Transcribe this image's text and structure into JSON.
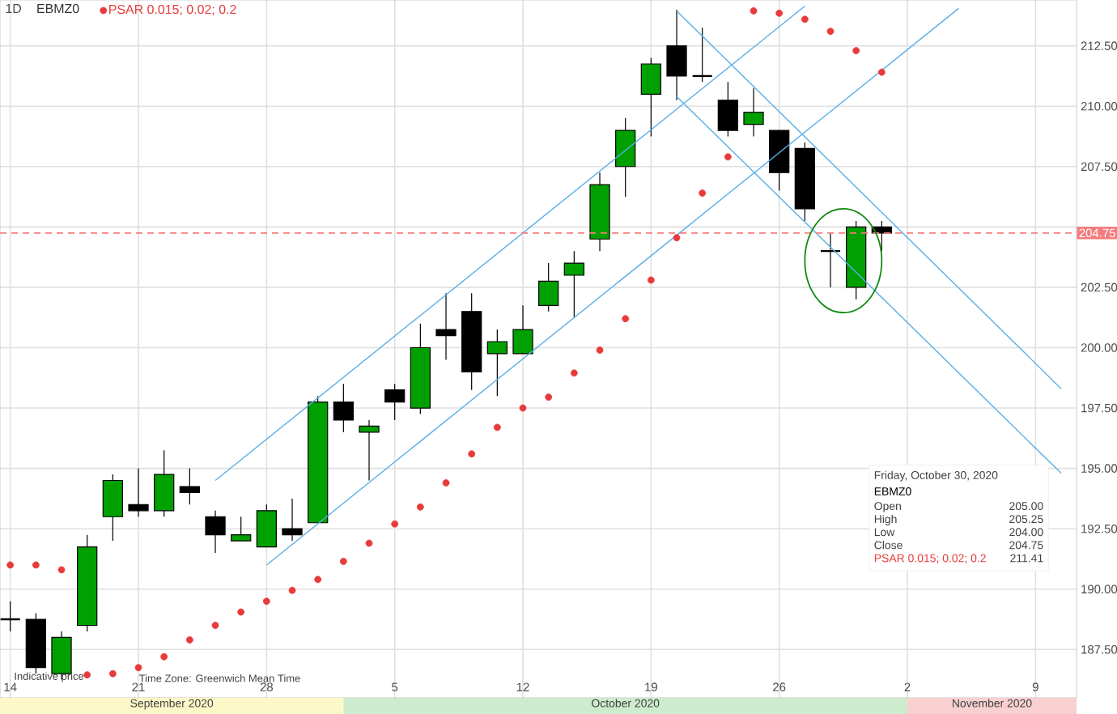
{
  "chart_data": {
    "type": "candlestick",
    "title": "EBMZ0",
    "subtitle": "1D",
    "annotations": [
      "Indicative price",
      "Time Zone: Greenwich Mean Time",
      "Friday, October 30, 2020",
      "EBMZ0",
      "Open",
      "205.00",
      "High",
      "205.25",
      "Low",
      "204.00",
      "Close",
      "204.75",
      "PSAR 0.015; 0.02; 0.2",
      "211.41",
      "September 2020",
      "October 2020",
      "November 2020"
    ],
    "categories": [
      "14",
      null,
      null,
      null,
      null,
      "21",
      null,
      null,
      null,
      null,
      "28",
      null,
      null,
      null,
      null,
      "5",
      null,
      null,
      null,
      null,
      "12",
      null,
      null,
      null,
      null,
      "19",
      null,
      null,
      null,
      null,
      "26",
      null,
      null,
      null,
      null,
      "2",
      null,
      null,
      null,
      null,
      "9",
      null
    ],
    "series": [
      {
        "ohlc": [
          [
            188.75,
            189.5,
            188.25,
            188.75
          ],
          [
            188.75,
            189.0,
            186.5,
            186.75
          ],
          [
            186.5,
            188.25,
            186.25,
            188.0
          ],
          [
            188.5,
            192.25,
            188.25,
            191.75
          ],
          [
            193.0,
            194.75,
            192.0,
            194.5
          ],
          [
            193.5,
            195.0,
            193.0,
            193.25
          ],
          [
            193.25,
            195.75,
            193.0,
            194.75
          ],
          [
            194.25,
            195.0,
            193.5,
            194.0
          ],
          [
            193.0,
            193.25,
            191.5,
            192.25
          ],
          [
            192.0,
            193.0,
            192.0,
            192.25
          ],
          [
            191.75,
            193.5,
            191.75,
            193.25
          ],
          [
            192.5,
            193.75,
            192.0,
            192.25
          ],
          [
            192.75,
            198.0,
            192.75,
            197.75
          ],
          [
            197.75,
            198.5,
            196.5,
            197.0
          ],
          [
            196.5,
            197.0,
            194.5,
            196.75
          ],
          [
            198.25,
            198.5,
            197.0,
            197.75
          ],
          [
            197.5,
            201.0,
            197.25,
            200.0
          ],
          [
            200.75,
            202.25,
            199.5,
            200.5
          ],
          [
            201.5,
            202.25,
            198.25,
            199.0
          ],
          [
            199.75,
            200.75,
            198.0,
            200.25
          ],
          [
            199.75,
            201.75,
            199.75,
            200.75
          ],
          [
            201.75,
            203.5,
            201.5,
            202.75
          ],
          [
            203.0,
            204.0,
            201.25,
            203.5
          ],
          [
            204.5,
            207.25,
            204.0,
            206.75
          ],
          [
            207.5,
            209.5,
            206.25,
            209.0
          ],
          [
            210.5,
            212.0,
            208.75,
            211.75
          ],
          [
            212.5,
            214.0,
            210.25,
            211.25
          ],
          [
            211.25,
            213.25,
            211.0,
            211.25
          ],
          [
            210.25,
            211.0,
            208.75,
            209.0
          ],
          [
            209.25,
            210.75,
            208.75,
            209.75
          ],
          [
            209.0,
            209.0,
            206.5,
            207.25
          ],
          [
            208.25,
            208.5,
            205.25,
            205.75
          ],
          [
            204.0,
            204.75,
            202.5,
            204.0
          ],
          [
            202.5,
            205.25,
            202.0,
            205.0
          ],
          [
            205.0,
            205.25,
            204.0,
            204.75
          ],
          null,
          null,
          null,
          null,
          null,
          null,
          null
        ],
        "colors": [
          "#000000",
          "#000000",
          "#00a000",
          "#00a000",
          "#00a000",
          "#000000",
          "#00a000",
          "#000000",
          "#000000",
          "#00a000",
          "#00a000",
          "#000000",
          "#00a000",
          "#000000",
          "#00a000",
          "#000000",
          "#00a000",
          "#000000",
          "#000000",
          "#00a000",
          "#00a000",
          "#00a000",
          "#00a000",
          "#00a000",
          "#00a000",
          "#00a000",
          "#000000",
          "#000000",
          "#000000",
          "#00a000",
          "#000000",
          "#000000",
          "#000000",
          "#00a000",
          "#000000",
          null,
          null,
          null,
          null,
          null,
          null,
          null
        ]
      },
      {
        "type": "scatter",
        "name": "PSAR 0.015; 0.02; 0.2",
        "color": "#e83a3a",
        "values": [
          191.0,
          191.0,
          190.8,
          186.45,
          186.5,
          186.75,
          187.2,
          187.9,
          188.5,
          189.05,
          189.5,
          189.95,
          190.4,
          191.15,
          191.9,
          192.7,
          193.4,
          194.4,
          195.6,
          196.7,
          197.5,
          197.95,
          198.95,
          199.9,
          201.2,
          202.8,
          204.55,
          206.4,
          207.9,
          213.95,
          213.85,
          213.6,
          213.1,
          212.3,
          211.41,
          null,
          null,
          null,
          null,
          null,
          null,
          null
        ]
      },
      {
        "type": "line",
        "color": "#5aaee6",
        "values": [
          null,
          null,
          null,
          null,
          null,
          null,
          null,
          null,
          194.5,
          null,
          null,
          null,
          null,
          null,
          null,
          null,
          null,
          null,
          null,
          null,
          null,
          null,
          null,
          null,
          null,
          null,
          null,
          null,
          null,
          null,
          null,
          214.15,
          null,
          null,
          null,
          null,
          null,
          null,
          null,
          null,
          null,
          null
        ]
      },
      {
        "type": "line",
        "color": "#5aaee6",
        "values": [
          null,
          null,
          null,
          null,
          null,
          null,
          null,
          null,
          null,
          null,
          191.0,
          null,
          null,
          null,
          null,
          null,
          null,
          null,
          null,
          null,
          null,
          null,
          null,
          null,
          null,
          null,
          null,
          null,
          null,
          null,
          null,
          null,
          null,
          null,
          null,
          null,
          null,
          214.05,
          null,
          null,
          null,
          null
        ]
      },
      {
        "type": "line",
        "color": "#5aaee6",
        "values": [
          null,
          null,
          null,
          null,
          null,
          null,
          null,
          null,
          null,
          null,
          null,
          null,
          null,
          null,
          null,
          null,
          null,
          null,
          null,
          null,
          null,
          null,
          null,
          null,
          null,
          null,
          213.95,
          null,
          null,
          null,
          null,
          null,
          null,
          null,
          null,
          null,
          null,
          null,
          null,
          null,
          null,
          198.3
        ]
      },
      {
        "type": "line",
        "color": "#5aaee6",
        "values": [
          null,
          null,
          null,
          null,
          null,
          null,
          null,
          null,
          null,
          null,
          null,
          null,
          null,
          null,
          null,
          null,
          null,
          null,
          null,
          null,
          null,
          null,
          null,
          null,
          null,
          null,
          210.4,
          null,
          null,
          null,
          null,
          null,
          null,
          null,
          null,
          null,
          null,
          null,
          null,
          null,
          null,
          194.8
        ]
      }
    ],
    "ylim": [
      185.5,
      214.4
    ],
    "yticks": [
      {
        "value": 187.5,
        "label": "187.50"
      },
      {
        "value": 190,
        "label": "190.00"
      },
      {
        "value": 192.5,
        "label": "192.50"
      },
      {
        "value": 195,
        "label": "195.00"
      },
      {
        "value": 197.5,
        "label": "197.50"
      },
      {
        "value": 200,
        "label": "200.00"
      },
      {
        "value": 202.5,
        "label": "202.50"
      },
      {
        "value": 205,
        "label": null
      },
      {
        "value": 207.5,
        "label": "207.50"
      },
      {
        "value": 210,
        "label": "210.00"
      },
      {
        "value": 212.5,
        "label": "212.50"
      }
    ],
    "ref_lines": [
      {
        "axis": "y",
        "value": 204.75,
        "label": "204.75",
        "color": "#f47c7c",
        "line_style": "dashed"
      }
    ],
    "grid": true,
    "legend": "top left"
  }
}
